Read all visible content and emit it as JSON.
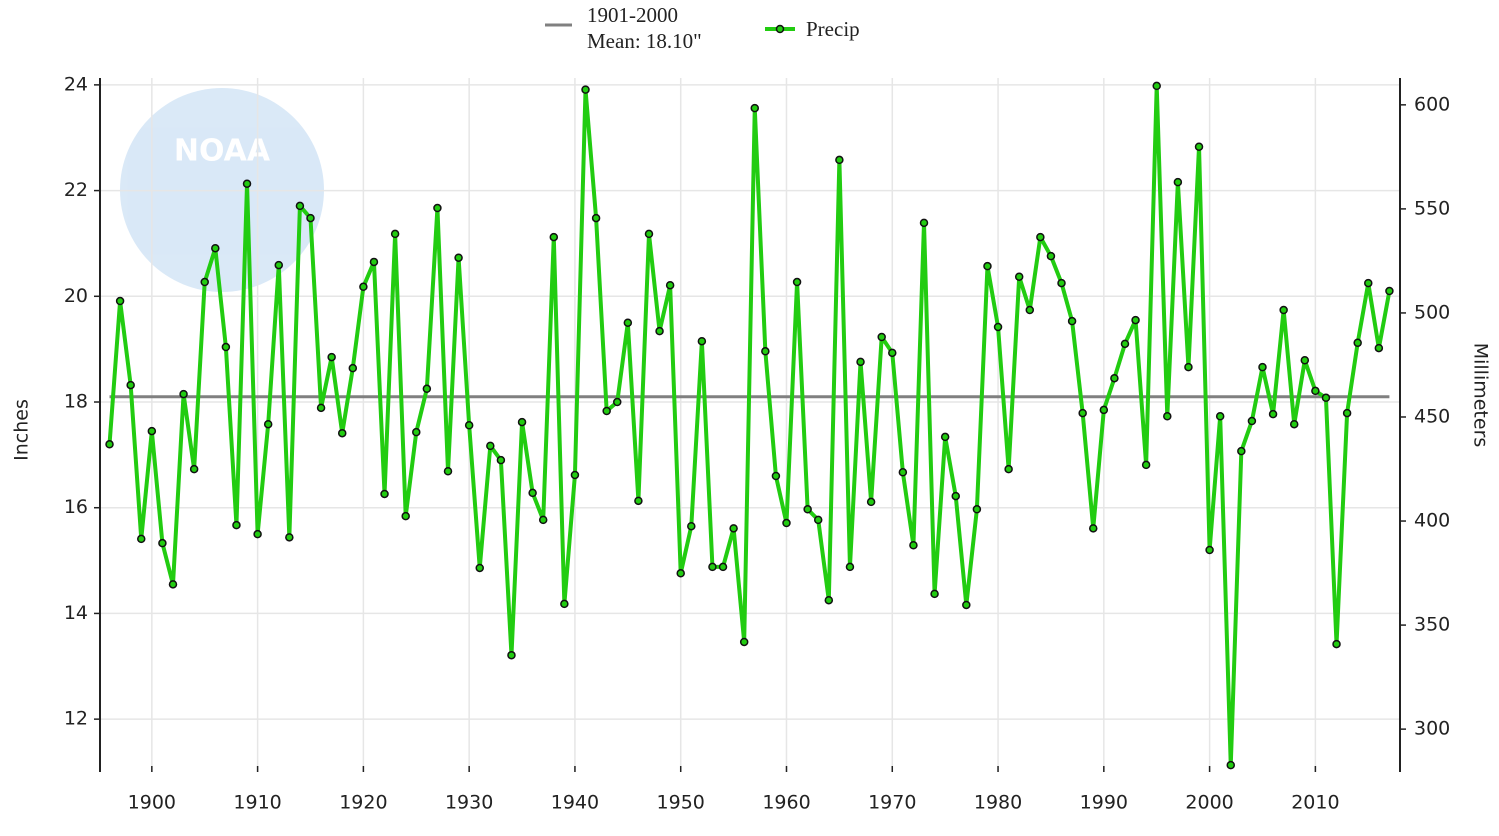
{
  "chart_data": {
    "type": "line",
    "watermark": "NOAA",
    "y_label": "Inches",
    "y2_label": "Millimeters",
    "legend": "top",
    "grid": true,
    "mean": {
      "value": 18.1,
      "period": "1901-2000",
      "label": "Mean: 18.10\"",
      "color": "#808080"
    },
    "x": [
      1896,
      1897,
      1898,
      1899,
      1900,
      1901,
      1902,
      1903,
      1904,
      1905,
      1906,
      1907,
      1908,
      1909,
      1910,
      1911,
      1912,
      1913,
      1914,
      1915,
      1916,
      1917,
      1918,
      1919,
      1920,
      1921,
      1922,
      1923,
      1924,
      1925,
      1926,
      1927,
      1928,
      1929,
      1930,
      1931,
      1932,
      1933,
      1934,
      1935,
      1936,
      1937,
      1938,
      1939,
      1940,
      1941,
      1942,
      1943,
      1944,
      1945,
      1946,
      1947,
      1948,
      1949,
      1950,
      1951,
      1952,
      1953,
      1954,
      1955,
      1956,
      1957,
      1958,
      1959,
      1960,
      1961,
      1962,
      1963,
      1964,
      1965,
      1966,
      1967,
      1968,
      1969,
      1970,
      1971,
      1972,
      1973,
      1974,
      1975,
      1976,
      1977,
      1978,
      1979,
      1980,
      1981,
      1982,
      1983,
      1984,
      1985,
      1986,
      1987,
      1988,
      1989,
      1990,
      1991,
      1992,
      1993,
      1994,
      1995,
      1996,
      1997,
      1998,
      1999,
      2000,
      2001,
      2002,
      2003,
      2004,
      2005,
      2006,
      2007,
      2008,
      2009,
      2010,
      2011,
      2012,
      2013,
      2014,
      2015,
      2016,
      2017
    ],
    "series": [
      {
        "name": "Precip",
        "color": "#22cc11",
        "values": [
          17.2,
          19.91,
          18.32,
          15.41,
          17.45,
          15.33,
          14.55,
          18.15,
          16.73,
          20.27,
          20.91,
          19.04,
          15.67,
          22.13,
          15.5,
          17.58,
          20.59,
          15.44,
          21.71,
          21.48,
          17.89,
          18.85,
          17.41,
          18.64,
          20.18,
          20.65,
          16.26,
          21.18,
          15.84,
          17.43,
          18.25,
          21.67,
          16.69,
          20.73,
          17.56,
          14.86,
          17.17,
          16.9,
          13.21,
          17.62,
          16.28,
          15.77,
          21.12,
          14.18,
          16.62,
          23.91,
          21.48,
          17.83,
          18.0,
          19.5,
          16.13,
          21.18,
          19.34,
          20.21,
          14.76,
          15.65,
          19.15,
          14.88,
          14.88,
          15.61,
          13.46,
          23.56,
          18.96,
          16.6,
          15.71,
          20.27,
          15.97,
          15.77,
          14.25,
          22.58,
          14.88,
          18.76,
          16.11,
          19.23,
          18.93,
          16.67,
          15.29,
          21.39,
          14.37,
          17.34,
          16.22,
          14.16,
          15.97,
          20.57,
          19.42,
          16.73,
          20.37,
          19.74,
          21.12,
          20.76,
          20.25,
          19.53,
          17.79,
          15.61,
          17.85,
          18.45,
          19.1,
          19.55,
          16.81,
          23.98,
          17.73,
          22.16,
          18.66,
          22.83,
          15.2,
          17.73,
          11.13,
          17.07,
          17.64,
          18.66,
          17.77,
          19.74,
          17.58,
          18.79,
          18.21,
          18.08,
          13.42,
          17.79,
          19.12,
          20.25,
          19.02,
          20.1
        ]
      }
    ],
    "xlim": [
      1895.1,
      2018
    ],
    "xticks": [
      1900,
      1910,
      1920,
      1930,
      1940,
      1950,
      1960,
      1970,
      1980,
      1990,
      2000,
      2010
    ],
    "ylim": [
      11,
      24.13
    ],
    "yticks": [
      12,
      14,
      16,
      18,
      20,
      22,
      24
    ],
    "y2lim": [
      279.4,
      612.9
    ],
    "y2ticks": [
      300,
      350,
      400,
      450,
      500,
      550,
      600
    ]
  }
}
